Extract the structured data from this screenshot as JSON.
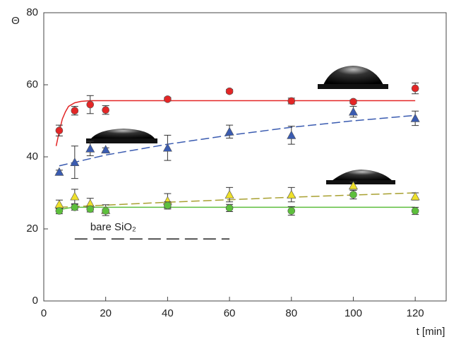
{
  "chart_data": {
    "type": "scatter",
    "y_label": "Θ",
    "x_label": "t [min]",
    "xlim": [
      0,
      130
    ],
    "ylim": [
      0,
      80
    ],
    "xticks": [
      0,
      20,
      40,
      60,
      80,
      100,
      120
    ],
    "yticks": [
      0,
      20,
      40,
      60,
      80
    ],
    "series": [
      {
        "color": "#e32626",
        "marker": "circle",
        "x": [
          5,
          10,
          15,
          20,
          40,
          60,
          80,
          100,
          120
        ],
        "values": [
          47.3,
          52.8,
          54.5,
          53,
          56,
          58.2,
          55.5,
          55.3,
          59
        ],
        "errors": [
          1.5,
          1.2,
          2.5,
          1.2,
          0.5,
          0.5,
          0.8,
          0.5,
          1.5
        ]
      },
      {
        "color": "#3a5bb0",
        "marker": "triangle",
        "x": [
          5,
          10,
          15,
          20,
          40,
          60,
          80,
          100,
          120
        ],
        "values": [
          35.8,
          38.5,
          42.3,
          42,
          42.5,
          47,
          46,
          52.5,
          50.7
        ],
        "errors": [
          0.5,
          4.5,
          2,
          0.5,
          3.5,
          1.8,
          2.5,
          1.5,
          2
        ]
      },
      {
        "color": "#eee02a",
        "marker": "triangle",
        "x": [
          5,
          10,
          15,
          20,
          40,
          60,
          80,
          100,
          120
        ],
        "values": [
          26.8,
          29,
          27,
          25.2,
          27.8,
          29.5,
          29.5,
          32,
          29
        ],
        "errors": [
          1.2,
          2,
          1.5,
          1.5,
          2,
          2,
          2,
          1,
          1
        ]
      },
      {
        "color": "#5dbf3c",
        "marker": "circle",
        "x": [
          5,
          10,
          15,
          20,
          40,
          60,
          80,
          100,
          120
        ],
        "values": [
          25,
          26,
          25.5,
          25,
          26.5,
          25.8,
          25,
          29.5,
          25
        ],
        "errors": [
          0.8,
          0.8,
          0.8,
          0.5,
          1,
          1,
          1.2,
          1.2,
          1
        ]
      }
    ],
    "fits": [
      {
        "color": "#e32626",
        "dash": false,
        "x": [
          4,
          5,
          6,
          7,
          8,
          10,
          12,
          15,
          20,
          120
        ],
        "values": [
          43,
          47,
          50.5,
          52.5,
          54,
          55,
          55.4,
          55.6,
          55.6,
          55.6
        ]
      },
      {
        "color": "#3a5bb0",
        "dash": true,
        "x": [
          5,
          20,
          40,
          60,
          80,
          100,
          120
        ],
        "values": [
          37.5,
          40.5,
          43.5,
          46,
          48.2,
          50,
          51.5
        ]
      },
      {
        "color": "#a8a030",
        "dash": true,
        "x": [
          5,
          20,
          40,
          60,
          80,
          100,
          120
        ],
        "values": [
          26,
          26.6,
          27.4,
          28.1,
          28.8,
          29.4,
          30
        ]
      },
      {
        "color": "#5dbf3c",
        "dash": false,
        "x": [
          4,
          6,
          8,
          10,
          15,
          20,
          120
        ],
        "values": [
          25,
          25.5,
          25.8,
          26,
          26,
          26,
          26
        ]
      }
    ],
    "reference": {
      "label": "bare SiO₂",
      "x": [
        10,
        60
      ],
      "y": 17.2
    }
  }
}
